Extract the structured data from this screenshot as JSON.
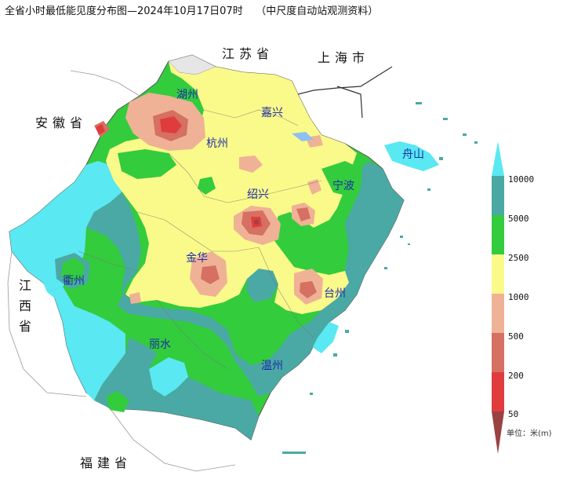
{
  "title": "全省小时最低能见度分布图—2024年10月17日07时    （中尺度自动站观测资料）",
  "provinces": {
    "jiangsu": "江苏省",
    "shanghai": "上海市",
    "anhui": "安徽省",
    "jiangxi": "江西省",
    "fujian": "福建省"
  },
  "cities": {
    "huzhou": "湖州",
    "jiaxing": "嘉兴",
    "hangzhou": "杭州",
    "shaoxing": "绍兴",
    "ningbo": "宁波",
    "zhoushan": "舟山",
    "jinhua": "金华",
    "quzhou": "衢州",
    "taizhou": "台州",
    "lishui": "丽水",
    "wenzhou": "温州"
  },
  "legend": {
    "unit": "单位：米(m)",
    "labels": [
      "10000",
      "5000",
      "2500",
      "1000",
      "500",
      "200",
      "50"
    ],
    "classes": [
      {
        "range": ">10000",
        "color": "#5ae8f2"
      },
      {
        "range": "5000-10000",
        "color": "#4aa9a4"
      },
      {
        "range": "2500-5000",
        "color": "#33cc3d"
      },
      {
        "range": "1000-2500",
        "color": "#fafa8a"
      },
      {
        "range": "500-1000",
        "color": "#efb296"
      },
      {
        "range": "200-500",
        "color": "#d57062"
      },
      {
        "range": "50-200",
        "color": "#e03c3e"
      },
      {
        "range": "<50",
        "color": "#9a4242"
      }
    ]
  }
}
